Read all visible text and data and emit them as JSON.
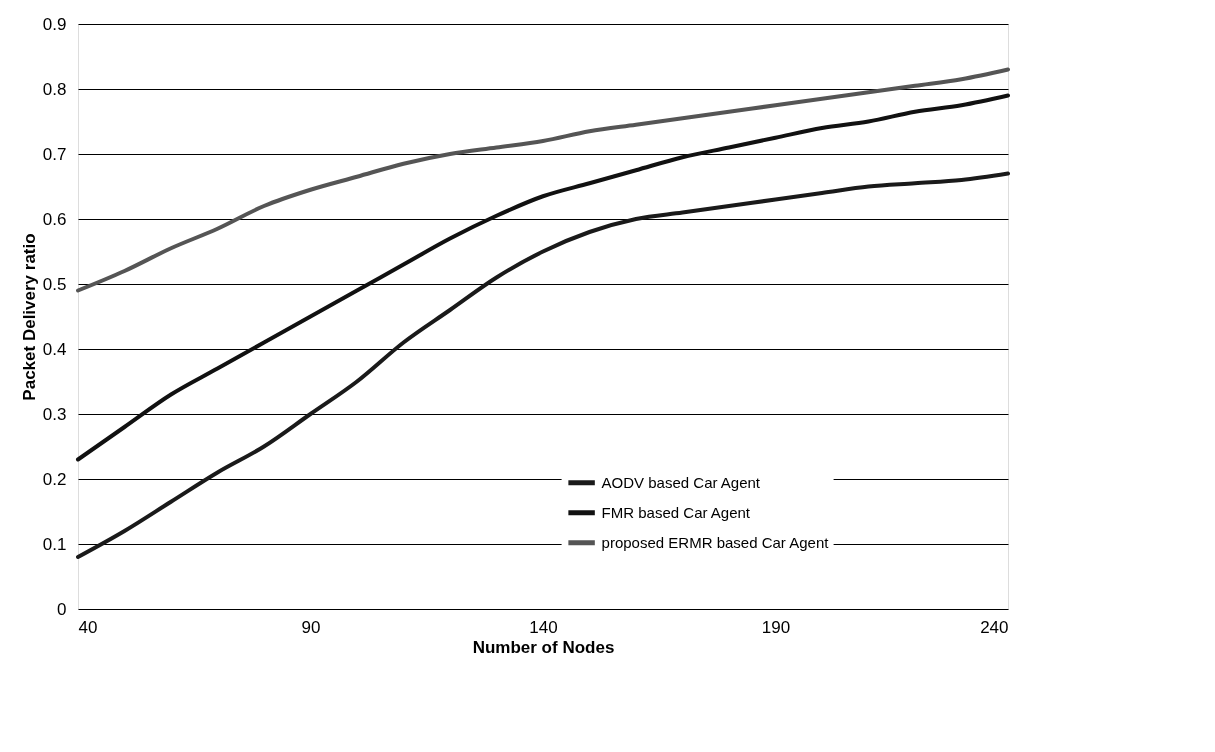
{
  "chart_data": {
    "type": "line",
    "xlabel": "Number of Nodes",
    "ylabel": "Packet Delivery ratio",
    "x": [
      40,
      50,
      60,
      70,
      80,
      90,
      100,
      110,
      120,
      130,
      140,
      150,
      160,
      170,
      180,
      190,
      200,
      210,
      220,
      230,
      240
    ],
    "series": [
      {
        "name": "AODV based Car Agent",
        "color": "#1a1a1a",
        "values": [
          0.08,
          0.12,
          0.165,
          0.21,
          0.25,
          0.3,
          0.35,
          0.41,
          0.46,
          0.51,
          0.55,
          0.58,
          0.6,
          0.61,
          0.62,
          0.63,
          0.64,
          0.65,
          0.655,
          0.66,
          0.67
        ]
      },
      {
        "name": "FMR based Car Agent",
        "color": "#111111",
        "values": [
          0.23,
          0.28,
          0.33,
          0.37,
          0.41,
          0.45,
          0.49,
          0.53,
          0.57,
          0.605,
          0.635,
          0.655,
          0.675,
          0.695,
          0.71,
          0.725,
          0.74,
          0.75,
          0.765,
          0.775,
          0.79
        ]
      },
      {
        "name": "proposed ERMR based Car Agent",
        "color": "#555555",
        "values": [
          0.49,
          0.52,
          0.555,
          0.585,
          0.62,
          0.645,
          0.665,
          0.685,
          0.7,
          0.71,
          0.72,
          0.735,
          0.745,
          0.755,
          0.765,
          0.775,
          0.785,
          0.795,
          0.805,
          0.815,
          0.83
        ]
      }
    ],
    "xlim": [
      40,
      240
    ],
    "xticks": [
      40,
      90,
      140,
      190,
      240
    ],
    "ylim": [
      0,
      0.9
    ],
    "yticks": [
      {
        "value": 0,
        "label": "0"
      },
      0.1,
      0.2,
      0.3,
      0.4,
      0.5,
      0.6,
      0.7,
      0.8,
      0.9
    ],
    "grid": "y",
    "legend": "bottom right",
    "marker": "none",
    "line_style": "solid"
  }
}
